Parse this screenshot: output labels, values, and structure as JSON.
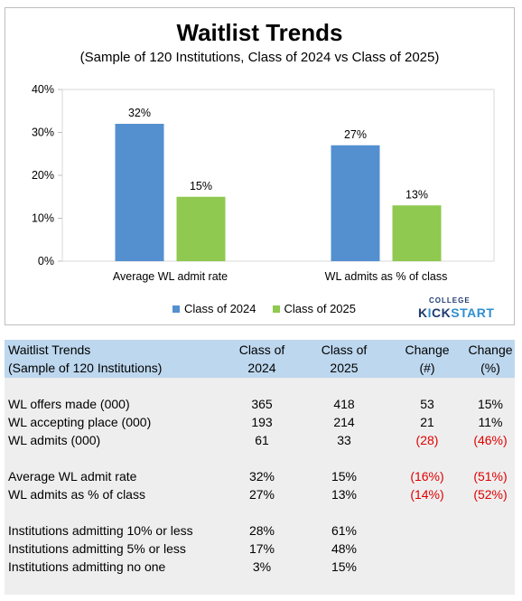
{
  "chart_data": {
    "type": "bar",
    "title": "Waitlist Trends",
    "subtitle": "(Sample of 120 Institutions, Class of 2024 vs Class of 2025)",
    "categories": [
      "Average WL admit rate",
      "WL admits as % of class"
    ],
    "series": [
      {
        "name": "Class of 2024",
        "values": [
          32,
          27
        ],
        "labels": [
          "32%",
          "27%"
        ],
        "color": "#5490d0"
      },
      {
        "name": "Class of 2025",
        "values": [
          15,
          13
        ],
        "labels": [
          "15%",
          "13%"
        ],
        "color": "#8fc94f"
      }
    ],
    "ylim": [
      0,
      40
    ],
    "yticks": [
      0,
      10,
      20,
      30,
      40
    ],
    "ytick_labels": [
      "0%",
      "10%",
      "20%",
      "30%",
      "40%"
    ],
    "grid": false,
    "legend": "bottom"
  },
  "logo": {
    "top": "COLLEGE",
    "main_a": "K",
    "main_b": "CK",
    "main_c": "START",
    "i_glyph": "I"
  },
  "table": {
    "header": {
      "label_line1": "Waitlist Trends",
      "label_line2": "(Sample of 120 Institutions)",
      "c2024_line1": "Class of",
      "c2024_line2": "2024",
      "c2025_line1": "Class of",
      "c2025_line2": "2025",
      "chg_num_line1": "Change",
      "chg_num_line2": "(#)",
      "chg_pct_line1": "Change",
      "chg_pct_line2": "(%)"
    },
    "rows": [
      {
        "label": "WL offers made (000)",
        "c2024": "365",
        "c2025": "418",
        "chg": "53",
        "pct": "15%",
        "neg": false
      },
      {
        "label": "WL accepting place (000)",
        "c2024": "193",
        "c2025": "214",
        "chg": "21",
        "pct": "11%",
        "neg": false
      },
      {
        "label": "WL admits (000)",
        "c2024": "61",
        "c2025": "33",
        "chg": "(28)",
        "pct": "(46%)",
        "neg": true
      },
      {
        "label": "Average WL admit rate",
        "c2024": "32%",
        "c2025": "15%",
        "chg": "(16%)",
        "pct": "(51%)",
        "neg": true
      },
      {
        "label": "WL admits as % of class",
        "c2024": "27%",
        "c2025": "13%",
        "chg": "(14%)",
        "pct": "(52%)",
        "neg": true
      },
      {
        "label": "Institutions admitting 10% or less",
        "c2024": "28%",
        "c2025": "61%",
        "chg": "",
        "pct": "",
        "neg": false
      },
      {
        "label": "Institutions admitting 5% or less",
        "c2024": "17%",
        "c2025": "48%",
        "chg": "",
        "pct": "",
        "neg": false
      },
      {
        "label": "Institutions admitting no one",
        "c2024": "3%",
        "c2025": "15%",
        "chg": "",
        "pct": "",
        "neg": false
      }
    ]
  }
}
